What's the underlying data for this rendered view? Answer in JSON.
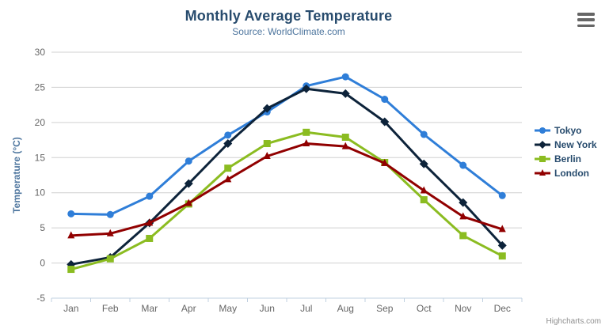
{
  "header": {
    "title": "Monthly Average Temperature",
    "subtitle": "Source: WorldClimate.com"
  },
  "credits": {
    "label": "Highcharts.com"
  },
  "export_menu": {
    "icon": "hamburger-icon"
  },
  "colors": {
    "title_text": "#274b6d",
    "subtitle_text": "#4d759e",
    "axis_title_text": "#4d759e",
    "tick_label_text": "#666666",
    "legend_text": "#274b6d",
    "grid_line": "#d0d0d0",
    "axis_line": "#c0d0e0",
    "hamburger": "#666666",
    "background": "#ffffff"
  },
  "chart_data": {
    "type": "line",
    "title": "Monthly Average Temperature",
    "subtitle": "Source: WorldClimate.com",
    "xlabel": "",
    "ylabel": "Temperature (°C)",
    "categories": [
      "Jan",
      "Feb",
      "Mar",
      "Apr",
      "May",
      "Jun",
      "Jul",
      "Aug",
      "Sep",
      "Oct",
      "Nov",
      "Dec"
    ],
    "ylim": [
      -5,
      30
    ],
    "yticks": [
      -5,
      0,
      5,
      10,
      15,
      20,
      25,
      30
    ],
    "grid": true,
    "legend_position": "right",
    "series": [
      {
        "name": "Tokyo",
        "color": "#2f7ed8",
        "marker": "circle",
        "values": [
          7.0,
          6.9,
          9.5,
          14.5,
          18.2,
          21.5,
          25.2,
          26.5,
          23.3,
          18.3,
          13.9,
          9.6
        ]
      },
      {
        "name": "New York",
        "color": "#0d233a",
        "marker": "diamond",
        "values": [
          -0.2,
          0.8,
          5.7,
          11.3,
          17.0,
          22.0,
          24.8,
          24.1,
          20.1,
          14.1,
          8.6,
          2.5
        ]
      },
      {
        "name": "Berlin",
        "color": "#8bbc21",
        "marker": "square",
        "values": [
          -0.9,
          0.6,
          3.5,
          8.4,
          13.5,
          17.0,
          18.6,
          17.9,
          14.3,
          9.0,
          3.9,
          1.0
        ]
      },
      {
        "name": "London",
        "color": "#910000",
        "marker": "triangle",
        "values": [
          3.9,
          4.2,
          5.7,
          8.5,
          11.9,
          15.2,
          17.0,
          16.6,
          14.2,
          10.3,
          6.6,
          4.8
        ]
      }
    ]
  }
}
